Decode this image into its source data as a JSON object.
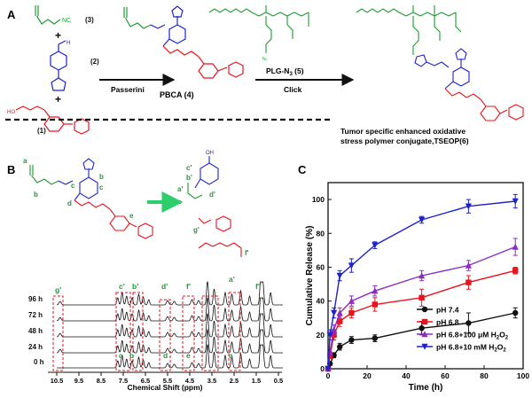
{
  "panel_a": {
    "letter": "A",
    "compound_1": "(1)",
    "compound_2": "(2)",
    "compound_3": "(3)",
    "nc_label": "NC",
    "plus": "+",
    "passerini": "Passerini",
    "pbca": "PBCA (4)",
    "plg": "PLG-N",
    "plg_sub": "3",
    "plg_num": " (5)",
    "click": "Click",
    "tseop_line1": "Tumor specific enhanced oxidative",
    "tseop_line2": "stress polymer conjugate,TSEOP(6)"
  },
  "panel_b": {
    "letter": "B",
    "struct_labels": [
      "a",
      "b",
      "c",
      "c",
      "b",
      "d",
      "e"
    ],
    "product_labels": [
      "c'",
      "b'",
      "a'",
      "d'",
      "g'",
      "f'"
    ],
    "time_labels": [
      "96 h",
      "72 h",
      "48 h",
      "24 h",
      "0 h"
    ],
    "peak_labels_top": [
      "g'",
      "c'",
      "b'",
      "d'",
      "f'",
      "a'",
      "f'"
    ],
    "peak_labels_bottom": [
      "c",
      "b",
      "d",
      "e",
      "a"
    ],
    "axis_ticks": [
      "10.5",
      "9.5",
      "8.5",
      "7.5",
      "6.5",
      "5.5",
      "4.5",
      "3.5",
      "2.5",
      "1.5",
      "0.5"
    ],
    "xlabel": "Chemical Shift (ppm)"
  },
  "chart_data": {
    "type": "line",
    "panel_letter": "C",
    "xlabel": "Time (h)",
    "ylabel": "Cumulative Release (%)",
    "xlim": [
      0,
      100
    ],
    "ylim": [
      0,
      110
    ],
    "xticks": [
      0,
      20,
      40,
      60,
      80,
      100
    ],
    "yticks": [
      0,
      20,
      40,
      60,
      80,
      100
    ],
    "legend_position": "bottom-right",
    "x": [
      0,
      1,
      3,
      6,
      12,
      24,
      48,
      72,
      96
    ],
    "series": [
      {
        "name": "pH 7.4",
        "color": "#111111",
        "marker": "circle",
        "values": [
          0,
          3,
          8,
          13,
          17,
          18,
          24,
          27,
          33
        ],
        "errors": [
          0,
          1,
          1.5,
          2,
          2,
          2,
          4,
          6,
          3
        ]
      },
      {
        "name": "pH 6.8",
        "color": "#e8141b",
        "marker": "square",
        "values": [
          0,
          8,
          20,
          28,
          33,
          38,
          42,
          51,
          58
        ],
        "errors": [
          0,
          2,
          3,
          3,
          3,
          4,
          5,
          4,
          2
        ]
      },
      {
        "name": "pH 6.8+100 μM H",
        "sub": "2",
        "tail": "O",
        "sub2": "2",
        "color": "#8e2bbf",
        "marker": "triangle-up",
        "values": [
          0,
          10,
          23,
          33,
          40,
          46,
          55,
          61,
          72
        ],
        "errors": [
          0,
          2,
          3,
          3,
          3,
          3,
          3,
          3,
          5
        ]
      },
      {
        "name": "pH 6.8+10 mM H",
        "sub": "2",
        "tail": "O",
        "sub2": "2",
        "color": "#1f22c9",
        "marker": "triangle-down",
        "values": [
          0,
          20,
          33,
          55,
          61,
          73,
          88,
          96,
          99
        ],
        "errors": [
          0,
          3,
          3,
          3,
          4,
          2,
          2,
          4,
          4
        ]
      }
    ]
  },
  "colors": {
    "black": "#111111",
    "red": "#e8141b",
    "blue": "#1f22c9",
    "green": "#1f9b33",
    "purple": "#8e2bbf",
    "arrow_green": "#2ccf6b"
  }
}
